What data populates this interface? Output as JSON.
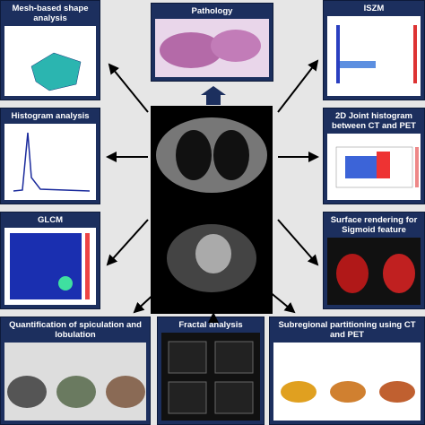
{
  "nodes": [
    {
      "label": "Mesh-based shape analysis"
    },
    {
      "label": "Pathology"
    },
    {
      "label": "ISZM"
    },
    {
      "label": "Histogram analysis"
    },
    {
      "label": "2D Joint histogram between CT and PET"
    },
    {
      "label": "GLCM"
    },
    {
      "label": "Surface rendering for Sigmoid feature"
    },
    {
      "label": "Quantification of spiculation and lobulation"
    },
    {
      "label": "Fractal analysis"
    },
    {
      "label": "Subregional partitioning using CT and PET"
    }
  ]
}
